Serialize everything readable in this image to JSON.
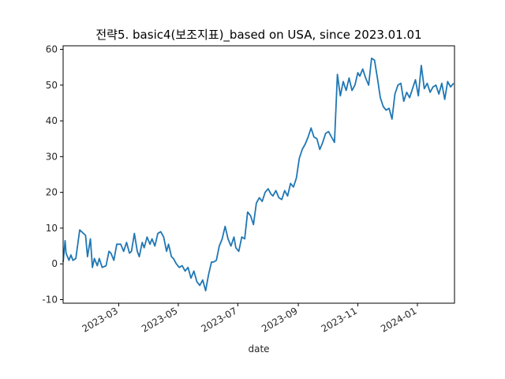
{
  "chart_data": {
    "type": "line",
    "title": "전략5. basic4(보조지표)_based on USA, since 2023.01.01",
    "xlabel": "date",
    "ylabel": "",
    "xlim": [
      "2023-01-03",
      "2024-02-08"
    ],
    "ylim": [
      -11,
      61
    ],
    "yticks": [
      -10,
      0,
      10,
      20,
      30,
      40,
      50,
      60
    ],
    "xticks": [
      "2023-03",
      "2023-05",
      "2023-07",
      "2023-09",
      "2023-11",
      "2024-01"
    ],
    "xticks_dates": [
      "2023-03-01",
      "2023-05-01",
      "2023-07-01",
      "2023-09-01",
      "2023-11-01",
      "2024-01-01"
    ],
    "grid": false,
    "color": "#1f77b4",
    "series": [
      {
        "name": "",
        "x": [
          "2023-01-03",
          "2023-01-05",
          "2023-01-06",
          "2023-01-09",
          "2023-01-11",
          "2023-01-13",
          "2023-01-16",
          "2023-01-20",
          "2023-01-26",
          "2023-01-28",
          "2023-01-31",
          "2023-02-02",
          "2023-02-04",
          "2023-02-07",
          "2023-02-09",
          "2023-02-12",
          "2023-02-16",
          "2023-02-19",
          "2023-02-21",
          "2023-02-24",
          "2023-02-27",
          "2023-03-03",
          "2023-03-06",
          "2023-03-09",
          "2023-03-12",
          "2023-03-14",
          "2023-03-17",
          "2023-03-20",
          "2023-03-22",
          "2023-03-25",
          "2023-03-27",
          "2023-03-30",
          "2023-04-02",
          "2023-04-04",
          "2023-04-07",
          "2023-04-10",
          "2023-04-13",
          "2023-04-16",
          "2023-04-19",
          "2023-04-21",
          "2023-04-24",
          "2023-04-26",
          "2023-04-29",
          "2023-05-02",
          "2023-05-05",
          "2023-05-08",
          "2023-05-11",
          "2023-05-14",
          "2023-05-17",
          "2023-05-20",
          "2023-05-23",
          "2023-05-26",
          "2023-05-29",
          "2023-06-01",
          "2023-06-04",
          "2023-06-06",
          "2023-06-09",
          "2023-06-12",
          "2023-06-15",
          "2023-06-18",
          "2023-06-21",
          "2023-06-24",
          "2023-06-27",
          "2023-06-29",
          "2023-07-02",
          "2023-07-05",
          "2023-07-08",
          "2023-07-11",
          "2023-07-14",
          "2023-07-17",
          "2023-07-20",
          "2023-07-23",
          "2023-07-26",
          "2023-07-29",
          "2023-08-01",
          "2023-08-04",
          "2023-08-06",
          "2023-08-09",
          "2023-08-12",
          "2023-08-15",
          "2023-08-18",
          "2023-08-21",
          "2023-08-24",
          "2023-08-27",
          "2023-08-30",
          "2023-09-02",
          "2023-09-05",
          "2023-09-08",
          "2023-09-11",
          "2023-09-14",
          "2023-09-17",
          "2023-09-20",
          "2023-09-23",
          "2023-09-26",
          "2023-09-29",
          "2023-10-02",
          "2023-10-05",
          "2023-10-08",
          "2023-10-11",
          "2023-10-14",
          "2023-10-17",
          "2023-10-20",
          "2023-10-23",
          "2023-10-26",
          "2023-10-29",
          "2023-11-01",
          "2023-11-03",
          "2023-11-06",
          "2023-11-09",
          "2023-11-12",
          "2023-11-15",
          "2023-11-18",
          "2023-11-21",
          "2023-11-24",
          "2023-11-27",
          "2023-11-30",
          "2023-12-03",
          "2023-12-06",
          "2023-12-09",
          "2023-12-12",
          "2023-12-15",
          "2023-12-18",
          "2023-12-21",
          "2023-12-24",
          "2023-12-27",
          "2023-12-30",
          "2024-01-02",
          "2024-01-05",
          "2024-01-08",
          "2024-01-11",
          "2024-01-14",
          "2024-01-17",
          "2024-01-20",
          "2024-01-23",
          "2024-01-26",
          "2024-01-29",
          "2024-02-01",
          "2024-02-04",
          "2024-02-07"
        ],
        "values": [
          0.5,
          6.5,
          3.0,
          1.0,
          2.5,
          1.0,
          1.5,
          9.5,
          8.0,
          2.0,
          7.0,
          -1.0,
          1.5,
          -0.5,
          1.5,
          -1.0,
          -0.5,
          3.5,
          3.0,
          1.0,
          5.5,
          5.5,
          3.5,
          6.0,
          3.0,
          3.5,
          8.5,
          3.5,
          2.0,
          6.0,
          4.5,
          7.5,
          5.5,
          7.0,
          5.0,
          8.5,
          9.0,
          7.5,
          3.5,
          5.5,
          2.0,
          1.5,
          0.0,
          -1.0,
          -0.5,
          -2.0,
          -1.0,
          -4.0,
          -2.0,
          -5.0,
          -6.0,
          -4.5,
          -7.5,
          -3.0,
          0.5,
          0.5,
          1.0,
          5.0,
          7.0,
          10.5,
          7.0,
          5.0,
          7.5,
          4.5,
          3.5,
          7.5,
          7.0,
          14.5,
          13.5,
          11.0,
          17.0,
          18.5,
          17.5,
          20.0,
          21.0,
          19.5,
          19.0,
          20.5,
          18.5,
          18.0,
          20.5,
          19.0,
          22.5,
          21.5,
          24.0,
          29.5,
          32.0,
          33.5,
          35.5,
          38.0,
          35.5,
          35.0,
          32.0,
          34.0,
          36.5,
          37.0,
          35.5,
          34.0,
          53.0,
          47.0,
          51.0,
          48.5,
          52.0,
          48.5,
          50.0,
          53.5,
          52.5,
          54.5,
          52.0,
          50.0,
          57.5,
          57.0,
          52.0,
          46.5,
          44.0,
          43.0,
          43.5,
          40.5,
          47.5,
          50.0,
          50.5,
          45.5,
          48.0,
          46.5,
          49.0,
          51.5,
          47.0,
          55.5,
          49.0,
          50.5,
          48.0,
          49.5,
          50.0,
          47.5,
          50.5,
          46.0,
          51.0,
          49.5,
          50.5
        ]
      }
    ]
  }
}
